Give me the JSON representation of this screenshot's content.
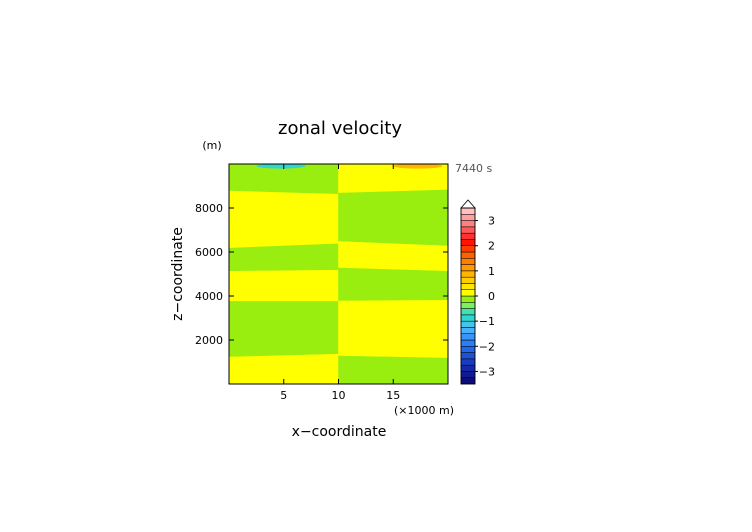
{
  "chart_data": {
    "type": "heatmap",
    "title": "zonal velocity",
    "xlabel": "x−coordinate",
    "ylabel": "z−coordinate",
    "x_unit": "(×1000 m)",
    "y_unit": "(m)",
    "time_label": "7440 s",
    "xlim": [
      0,
      20
    ],
    "ylim": [
      0,
      10000
    ],
    "x_ticks": [
      5,
      10,
      15
    ],
    "y_ticks": [
      2000,
      4000,
      6000,
      8000
    ],
    "x_tick_labels": [
      "5",
      "10",
      "15"
    ],
    "y_tick_labels": [
      "2000",
      "4000",
      "6000",
      "8000"
    ],
    "colorbar": {
      "levels": [
        -3.5,
        -3.25,
        -3,
        -2.75,
        -2.5,
        -2.25,
        -2,
        -1.75,
        -1.5,
        -1.25,
        -1,
        -0.75,
        -0.5,
        -0.25,
        0,
        0.25,
        0.5,
        0.75,
        1,
        1.25,
        1.5,
        1.75,
        2,
        2.25,
        2.5,
        2.75,
        3,
        3.25,
        3.5
      ],
      "colors": [
        "#0c0c7a",
        "#121a92",
        "#1428aa",
        "#1a3cc4",
        "#1e50d8",
        "#2266ea",
        "#2a7ef6",
        "#3896f8",
        "#48b0f8",
        "#44c6ec",
        "#30d4d0",
        "#3ee0b4",
        "#7cf060",
        "#99ee10",
        "#ffff00",
        "#ffe800",
        "#ffce00",
        "#ffb400",
        "#ff9a00",
        "#ff7e00",
        "#ff6000",
        "#ff3c00",
        "#ff1400",
        "#ff3030",
        "#ff5858",
        "#ff8080",
        "#ffa0a0",
        "#ffc0c0"
      ],
      "tick_values": [
        -3,
        -2,
        -1,
        0,
        1,
        2,
        3
      ],
      "tick_labels": [
        "−3",
        "−2",
        "−1",
        "0",
        "1",
        "2",
        "3"
      ],
      "extend": "max"
    },
    "field_colors": {
      "negative": "#99ee10",
      "positive": "#ffff00",
      "cyan": "#30d4d0",
      "orange": "#ffb400"
    },
    "regions": [
      {
        "sign": "positive",
        "x": [
          0,
          10
        ],
        "z_bottom": [
          0,
          0
        ],
        "z_top": [
          1250,
          1380
        ]
      },
      {
        "sign": "negative",
        "x": [
          0,
          10
        ],
        "z_bottom": [
          1250,
          1380
        ],
        "z_top": [
          3780,
          3780
        ]
      },
      {
        "sign": "positive",
        "x": [
          0,
          10
        ],
        "z_bottom": [
          3780,
          3780
        ],
        "z_top": [
          5150,
          5200
        ]
      },
      {
        "sign": "negative",
        "x": [
          0,
          10
        ],
        "z_bottom": [
          5150,
          5200
        ],
        "z_top": [
          6200,
          6400
        ]
      },
      {
        "sign": "positive",
        "x": [
          0,
          10
        ],
        "z_bottom": [
          6200,
          6400
        ],
        "z_top": [
          8800,
          8650
        ]
      },
      {
        "sign": "negative",
        "x": [
          0,
          10
        ],
        "z_bottom": [
          8800,
          8650
        ],
        "z_top": [
          10000,
          10000
        ]
      },
      {
        "sign": "negative",
        "x": [
          10,
          20
        ],
        "z_bottom": [
          0,
          0
        ],
        "z_top": [
          1300,
          1200
        ]
      },
      {
        "sign": "positive",
        "x": [
          10,
          20
        ],
        "z_bottom": [
          1300,
          1200
        ],
        "z_top": [
          3800,
          3830
        ]
      },
      {
        "sign": "negative",
        "x": [
          10,
          20
        ],
        "z_bottom": [
          3800,
          3830
        ],
        "z_top": [
          5300,
          5150
        ]
      },
      {
        "sign": "positive",
        "x": [
          10,
          20
        ],
        "z_bottom": [
          5300,
          5150
        ],
        "z_top": [
          6500,
          6300
        ]
      },
      {
        "sign": "negative",
        "x": [
          10,
          20
        ],
        "z_bottom": [
          6500,
          6300
        ],
        "z_top": [
          8700,
          8850
        ]
      },
      {
        "sign": "positive",
        "x": [
          10,
          20
        ],
        "z_bottom": [
          8700,
          8850
        ],
        "z_top": [
          10000,
          10000
        ]
      }
    ],
    "spots": [
      {
        "sign": "cyan",
        "x": [
          2.5,
          7.0
        ],
        "z": 9950
      },
      {
        "sign": "orange",
        "x": [
          15.0,
          19.5
        ],
        "z": 9950
      }
    ]
  }
}
